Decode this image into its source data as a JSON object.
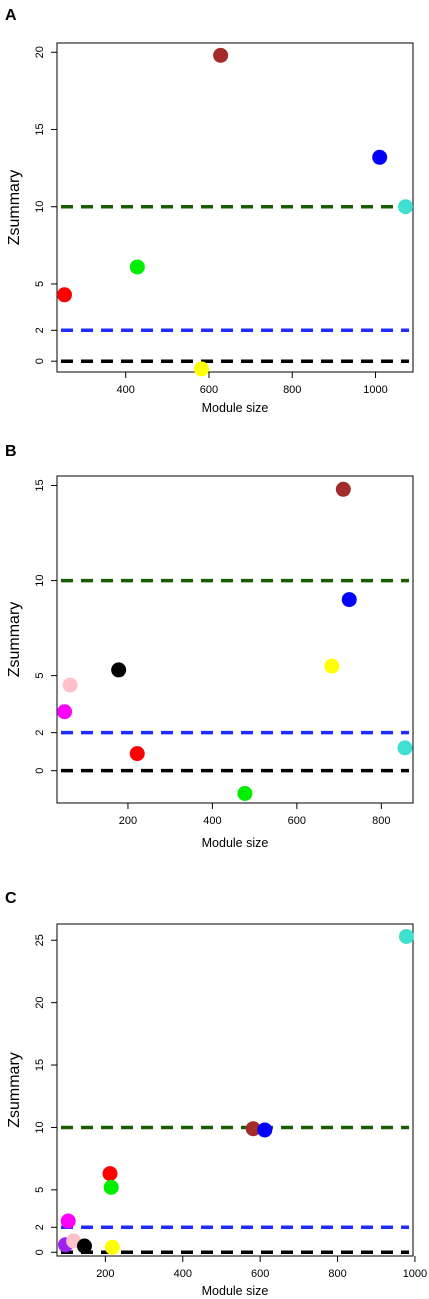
{
  "chart_data": [
    {
      "type": "scatter",
      "panel": "A",
      "xlabel": "Module size",
      "ylabel": "Zsummary",
      "xlim": [
        235,
        1090
      ],
      "ylim": [
        -0.7,
        20.6
      ],
      "x_ticks": [
        400,
        600,
        800,
        1000
      ],
      "y_ticks": [
        0,
        2,
        5,
        10,
        15,
        20
      ],
      "thresholds": [
        {
          "y": 10,
          "color": "#1a5c00"
        },
        {
          "y": 2,
          "color": "#1f2bff"
        },
        {
          "y": 0,
          "color": "#000000"
        }
      ],
      "points": [
        {
          "x": 253,
          "y": 4.3,
          "color": "#ff0000"
        },
        {
          "x": 428,
          "y": 6.1,
          "color": "#00ee00"
        },
        {
          "x": 582,
          "y": -0.5,
          "color": "#ffff00"
        },
        {
          "x": 628,
          "y": 19.8,
          "color": "#a52a2a"
        },
        {
          "x": 1010,
          "y": 13.2,
          "color": "#0000ff"
        },
        {
          "x": 1072,
          "y": 10.0,
          "color": "#40e0d0"
        }
      ]
    },
    {
      "type": "scatter",
      "panel": "B",
      "xlabel": "Module size",
      "ylabel": "Zsummary",
      "xlim": [
        32,
        875
      ],
      "ylim": [
        -1.7,
        15.5
      ],
      "x_ticks": [
        200,
        400,
        600,
        800
      ],
      "y_ticks": [
        0,
        2,
        5,
        10,
        15
      ],
      "thresholds": [
        {
          "y": 10,
          "color": "#1a5c00"
        },
        {
          "y": 2,
          "color": "#1f2bff"
        },
        {
          "y": 0,
          "color": "#000000"
        }
      ],
      "points": [
        {
          "x": 50,
          "y": 3.1,
          "color": "#ff00ff"
        },
        {
          "x": 63,
          "y": 4.5,
          "color": "#ffc0cb"
        },
        {
          "x": 178,
          "y": 5.3,
          "color": "#000000"
        },
        {
          "x": 222,
          "y": 0.9,
          "color": "#ff0000"
        },
        {
          "x": 477,
          "y": -1.2,
          "color": "#00ee00"
        },
        {
          "x": 683,
          "y": 5.5,
          "color": "#ffff00"
        },
        {
          "x": 710,
          "y": 14.8,
          "color": "#a52a2a"
        },
        {
          "x": 724,
          "y": 9.0,
          "color": "#0000ff"
        },
        {
          "x": 856,
          "y": 1.2,
          "color": "#40e0d0"
        }
      ]
    },
    {
      "type": "scatter",
      "panel": "C",
      "xlabel": "Module size",
      "ylabel": "Zsummary",
      "xlim": [
        75,
        995
      ],
      "ylim": [
        -0.3,
        26.3
      ],
      "x_ticks": [
        200,
        400,
        600,
        800,
        1000
      ],
      "y_ticks": [
        0,
        2,
        5,
        10,
        15,
        20,
        25
      ],
      "thresholds": [
        {
          "y": 10,
          "color": "#1a5c00"
        },
        {
          "y": 2,
          "color": "#1f2bff"
        },
        {
          "y": 0,
          "color": "#000000"
        }
      ],
      "points": [
        {
          "x": 97,
          "y": 0.6,
          "color": "#a020f0"
        },
        {
          "x": 104,
          "y": 2.5,
          "color": "#ff00ff"
        },
        {
          "x": 118,
          "y": 0.9,
          "color": "#ffc0cb"
        },
        {
          "x": 146,
          "y": 0.5,
          "color": "#000000"
        },
        {
          "x": 212,
          "y": 6.3,
          "color": "#ff0000"
        },
        {
          "x": 215,
          "y": 5.2,
          "color": "#00ee00"
        },
        {
          "x": 218,
          "y": 0.4,
          "color": "#ffff00"
        },
        {
          "x": 582,
          "y": 9.9,
          "color": "#a52a2a"
        },
        {
          "x": 612,
          "y": 9.8,
          "color": "#0000ff"
        },
        {
          "x": 978,
          "y": 25.3,
          "color": "#40e0d0"
        }
      ]
    }
  ]
}
